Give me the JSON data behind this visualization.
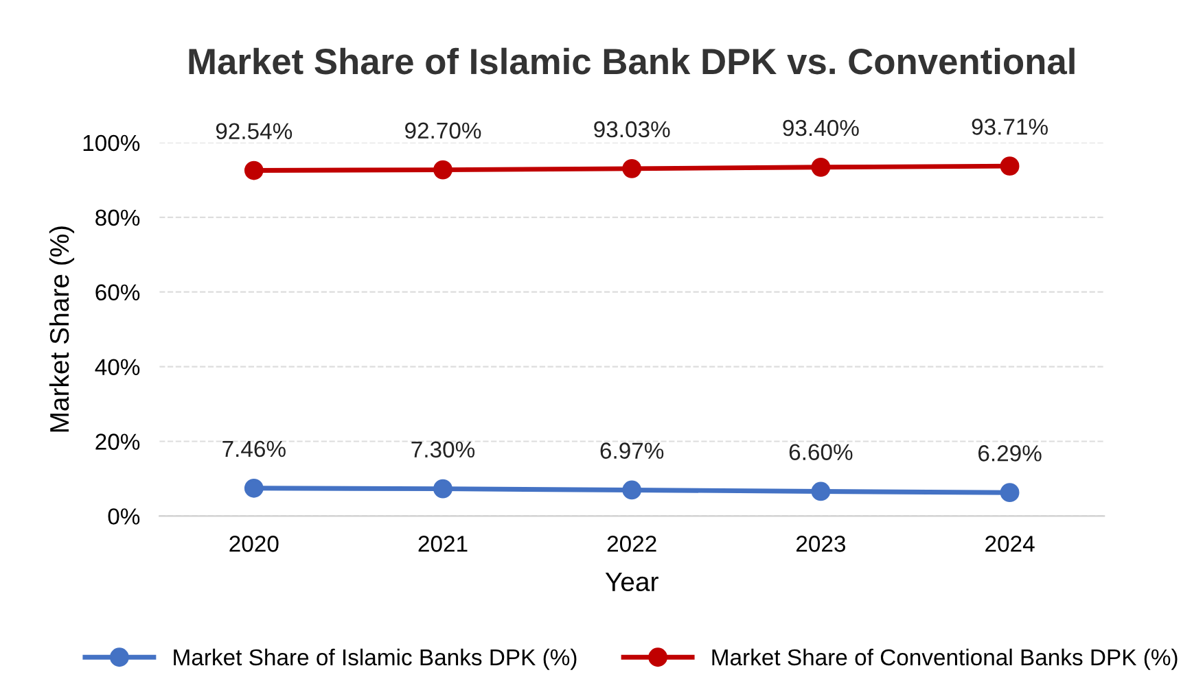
{
  "chart_data": {
    "type": "line",
    "title": "Market Share of Islamic Bank DPK vs. Conventional",
    "xlabel": "Year",
    "ylabel": "Market Share (%)",
    "categories": [
      "2020",
      "2021",
      "2022",
      "2023",
      "2024"
    ],
    "series": [
      {
        "name": "Market Share of Islamic Banks DPK (%)",
        "color": "#4472c4",
        "values": [
          7.46,
          7.3,
          6.97,
          6.6,
          6.29
        ],
        "value_labels": [
          "7.46%",
          "7.30%",
          "6.97%",
          "6.60%",
          "6.29%"
        ]
      },
      {
        "name": "Market Share of Conventional Banks DPK (%)",
        "color": "#c00000",
        "values": [
          92.54,
          92.7,
          93.03,
          93.4,
          93.71
        ],
        "value_labels": [
          "92.54%",
          "92.70%",
          "93.03%",
          "93.40%",
          "93.71%"
        ]
      }
    ],
    "ylim": [
      0,
      100
    ],
    "yticks": [
      {
        "value": 0,
        "label": "0%"
      },
      {
        "value": 20,
        "label": "20%"
      },
      {
        "value": 40,
        "label": "40%"
      },
      {
        "value": 60,
        "label": "60%"
      },
      {
        "value": 80,
        "label": "80%"
      },
      {
        "value": 100,
        "label": "100%"
      }
    ],
    "grid": "y",
    "legend": "bottom",
    "marker": "circle",
    "line_style": "solid"
  }
}
